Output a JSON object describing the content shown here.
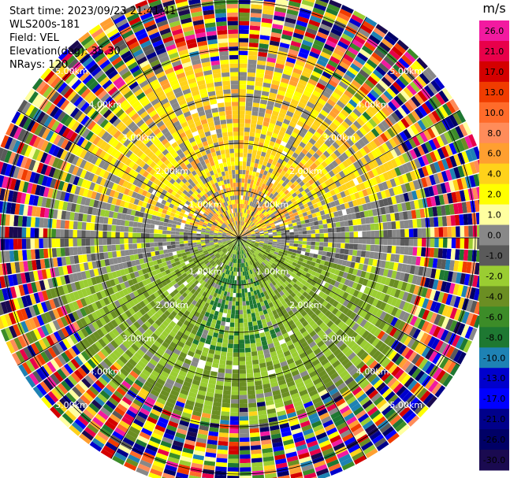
{
  "info": {
    "start_time": "Start time: 2023/09/23 21:41:41",
    "instrument": "WLS200s-181",
    "field": "Field: VEL",
    "elevation": "Elevation(deg): 35.30",
    "nrays": "NRays: 120"
  },
  "chart_data": {
    "type": "heatmap",
    "projection": "polar-ppi",
    "field": "VEL",
    "units": "m/s",
    "n_rays": 120,
    "elevation_deg": 35.3,
    "range_rings_km": [
      1.0,
      2.0,
      3.0,
      4.0,
      5.0
    ],
    "ring_labels": [
      "1.00km",
      "2.00km",
      "3.00km",
      "4.00km",
      "5.00km"
    ],
    "radial_lines_deg": [
      0,
      30,
      60,
      90,
      120,
      150,
      180,
      210,
      240,
      270,
      300,
      330
    ],
    "max_range_km": 5.4,
    "colorbar": {
      "unit": "m/s",
      "ticks": [
        "26.0",
        "21.0",
        "17.0",
        "13.0",
        "10.0",
        "8.0",
        "6.0",
        "4.0",
        "2.0",
        "1.0",
        "0.0",
        "-1.0",
        "-2.0",
        "-4.0",
        "-6.0",
        "-8.0",
        "-10.0",
        "-13.0",
        "-17.0",
        "-21.0",
        "-26.0",
        "-30.0"
      ],
      "colors": [
        "#f21aa0",
        "#e8004a",
        "#d40000",
        "#f03c00",
        "#ff6b2a",
        "#ff8c5a",
        "#ff9f30",
        "#ffd21a",
        "#ffff00",
        "#ffffa0",
        "#888888",
        "#5a5a5a",
        "#9acd32",
        "#6b8e23",
        "#3c8c28",
        "#1e7832",
        "#1e82b4",
        "#0000cd",
        "#0000ff",
        "#00008b",
        "#000066",
        "#1a0a50"
      ]
    },
    "pattern": {
      "inner_positive_sector_deg": [
        285,
        75
      ],
      "inner_negative_sector_deg": [
        105,
        255
      ],
      "clean_radius_km": 3.5,
      "noise_from_km": 4.1
    }
  }
}
